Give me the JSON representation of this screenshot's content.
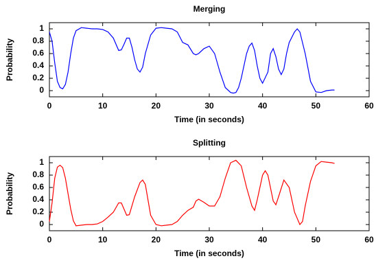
{
  "chart_data": [
    {
      "type": "line",
      "title": "Merging",
      "xlabel": "Time (in seconds)",
      "ylabel": "Probability",
      "xlim": [
        0,
        60
      ],
      "xticks": [
        0,
        10,
        20,
        30,
        40,
        50,
        60
      ],
      "ylim": [
        -0.1,
        1.1
      ],
      "yticks": [
        0,
        0.2,
        0.4,
        0.6,
        0.8,
        1
      ],
      "x": [
        0,
        0.5,
        1,
        1.5,
        2,
        2.5,
        3,
        3.5,
        4,
        4.5,
        5,
        6,
        7,
        8,
        9,
        10,
        11,
        12,
        13,
        13.5,
        14,
        14.5,
        15,
        15.5,
        16,
        16.5,
        17,
        17.5,
        18,
        19,
        20,
        21,
        22,
        23,
        24,
        25,
        26,
        27,
        27.5,
        28,
        29,
        30,
        31,
        32,
        33,
        34,
        34.5,
        35,
        35.5,
        36,
        37,
        37.5,
        38,
        38.5,
        39,
        39.5,
        40,
        41,
        41.5,
        42,
        42.5,
        43,
        43.5,
        44,
        44.5,
        45,
        46,
        46.5,
        47,
        48,
        49,
        50,
        51,
        52,
        53,
        53.5
      ],
      "series": [
        {
          "color": "#0000ff",
          "values": [
            0.95,
            0.8,
            0.45,
            0.15,
            0.05,
            0.03,
            0.1,
            0.3,
            0.6,
            0.85,
            0.97,
            1.02,
            1.01,
            1.0,
            1.0,
            0.99,
            0.95,
            0.85,
            0.65,
            0.66,
            0.75,
            0.85,
            0.85,
            0.7,
            0.5,
            0.35,
            0.3,
            0.38,
            0.6,
            0.9,
            1.01,
            1.02,
            1.01,
            1.0,
            0.95,
            0.78,
            0.74,
            0.6,
            0.58,
            0.6,
            0.68,
            0.72,
            0.6,
            0.3,
            0.05,
            -0.03,
            -0.04,
            -0.03,
            0.05,
            0.2,
            0.6,
            0.72,
            0.77,
            0.65,
            0.4,
            0.2,
            0.12,
            0.3,
            0.6,
            0.68,
            0.55,
            0.35,
            0.26,
            0.35,
            0.6,
            0.78,
            0.95,
            1.0,
            0.95,
            0.6,
            0.15,
            -0.02,
            -0.03,
            0.0,
            0.01,
            0.01
          ]
        }
      ]
    },
    {
      "type": "line",
      "title": "Splitting",
      "xlabel": "Time (in seconds)",
      "ylabel": "Probability",
      "xlim": [
        0,
        60
      ],
      "xticks": [
        0,
        10,
        20,
        30,
        40,
        50,
        60
      ],
      "ylim": [
        -0.1,
        1.1
      ],
      "yticks": [
        0,
        0.2,
        0.4,
        0.6,
        0.8,
        1
      ],
      "x": [
        0,
        0.5,
        1,
        1.5,
        2,
        2.5,
        3,
        3.5,
        4,
        4.5,
        5,
        6,
        7,
        8,
        9,
        10,
        11,
        12,
        13,
        13.5,
        14,
        14.5,
        15,
        16,
        17,
        17.5,
        18,
        18.5,
        19,
        20,
        21,
        22,
        23,
        24,
        25,
        26,
        27,
        27.5,
        28,
        29,
        30,
        31,
        32,
        33,
        34,
        35,
        36,
        37,
        38,
        38.5,
        39,
        40,
        40.5,
        41,
        42,
        42.5,
        43,
        44,
        45,
        46,
        47,
        47.5,
        48,
        49,
        50,
        51,
        52,
        53,
        53.5
      ],
      "series": [
        {
          "color": "#ff0000",
          "values": [
            0.05,
            0.35,
            0.75,
            0.93,
            0.96,
            0.92,
            0.75,
            0.5,
            0.25,
            0.06,
            -0.02,
            -0.01,
            0.0,
            0.0,
            0.01,
            0.05,
            0.12,
            0.2,
            0.35,
            0.35,
            0.25,
            0.15,
            0.16,
            0.45,
            0.68,
            0.72,
            0.65,
            0.4,
            0.15,
            0.0,
            -0.02,
            -0.01,
            0.0,
            0.05,
            0.15,
            0.23,
            0.28,
            0.38,
            0.41,
            0.36,
            0.3,
            0.3,
            0.45,
            0.75,
            1.0,
            1.04,
            0.95,
            0.6,
            0.3,
            0.23,
            0.4,
            0.8,
            0.87,
            0.8,
            0.38,
            0.32,
            0.45,
            0.72,
            0.6,
            0.2,
            0.0,
            0.05,
            0.3,
            0.7,
            0.95,
            1.02,
            1.01,
            1.0,
            0.99
          ]
        }
      ]
    }
  ]
}
